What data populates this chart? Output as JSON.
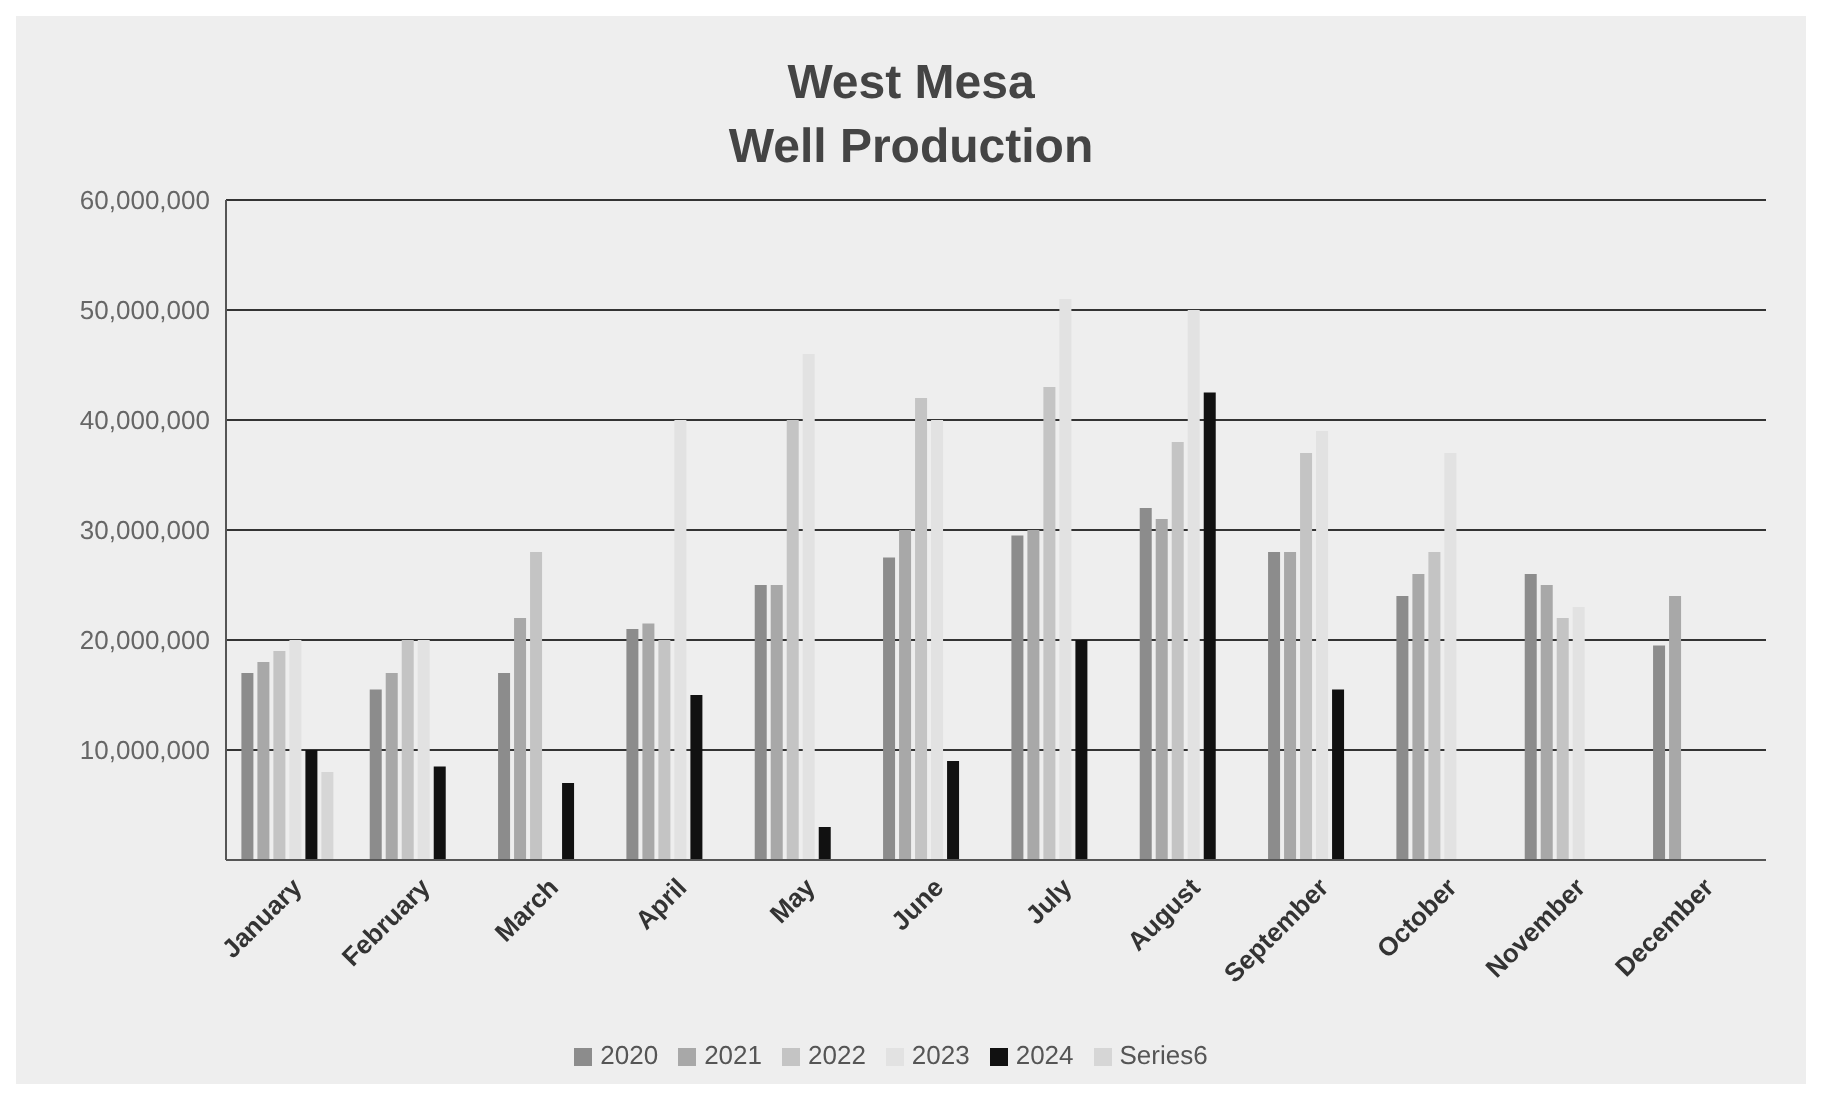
{
  "chart_data": {
    "type": "bar",
    "title": "West Mesa\nWell Production",
    "categories": [
      "January",
      "February",
      "March",
      "April",
      "May",
      "June",
      "July",
      "August",
      "September",
      "October",
      "November",
      "December"
    ],
    "series": [
      {
        "name": "2020",
        "color": "#8c8c8c",
        "values": [
          17000000,
          15500000,
          17000000,
          21000000,
          25000000,
          27500000,
          29500000,
          32000000,
          28000000,
          24000000,
          26000000,
          19500000
        ]
      },
      {
        "name": "2021",
        "color": "#a8a8a8",
        "values": [
          18000000,
          17000000,
          22000000,
          21500000,
          25000000,
          30000000,
          30000000,
          31000000,
          28000000,
          26000000,
          25000000,
          24000000
        ]
      },
      {
        "name": "2022",
        "color": "#c4c4c4",
        "values": [
          19000000,
          20000000,
          28000000,
          20000000,
          40000000,
          42000000,
          43000000,
          38000000,
          37000000,
          28000000,
          22000000,
          null
        ]
      },
      {
        "name": "2023",
        "color": "#e2e2e2",
        "values": [
          20000000,
          20000000,
          null,
          40000000,
          46000000,
          40000000,
          51000000,
          50000000,
          39000000,
          37000000,
          23000000,
          null
        ]
      },
      {
        "name": "2024",
        "color": "#111111",
        "values": [
          10000000,
          8500000,
          7000000,
          15000000,
          3000000,
          9000000,
          20000000,
          42500000,
          15500000,
          null,
          null,
          null
        ]
      },
      {
        "name": "Series6",
        "color": "#d6d6d6",
        "values": [
          8000000,
          null,
          null,
          null,
          null,
          null,
          null,
          null,
          null,
          null,
          null,
          null
        ]
      }
    ],
    "ylim": [
      0,
      60000000
    ],
    "yticks": [
      {
        "value": 10000000,
        "label": "10,000,000"
      },
      {
        "value": 20000000,
        "label": "20,000,000"
      },
      {
        "value": 30000000,
        "label": "30,000,000"
      },
      {
        "value": 40000000,
        "label": "40,000,000"
      },
      {
        "value": 50000000,
        "label": "50,000,000"
      },
      {
        "value": 60000000,
        "label": "60,000,000"
      }
    ],
    "grid": "y",
    "legend": "bottom"
  }
}
